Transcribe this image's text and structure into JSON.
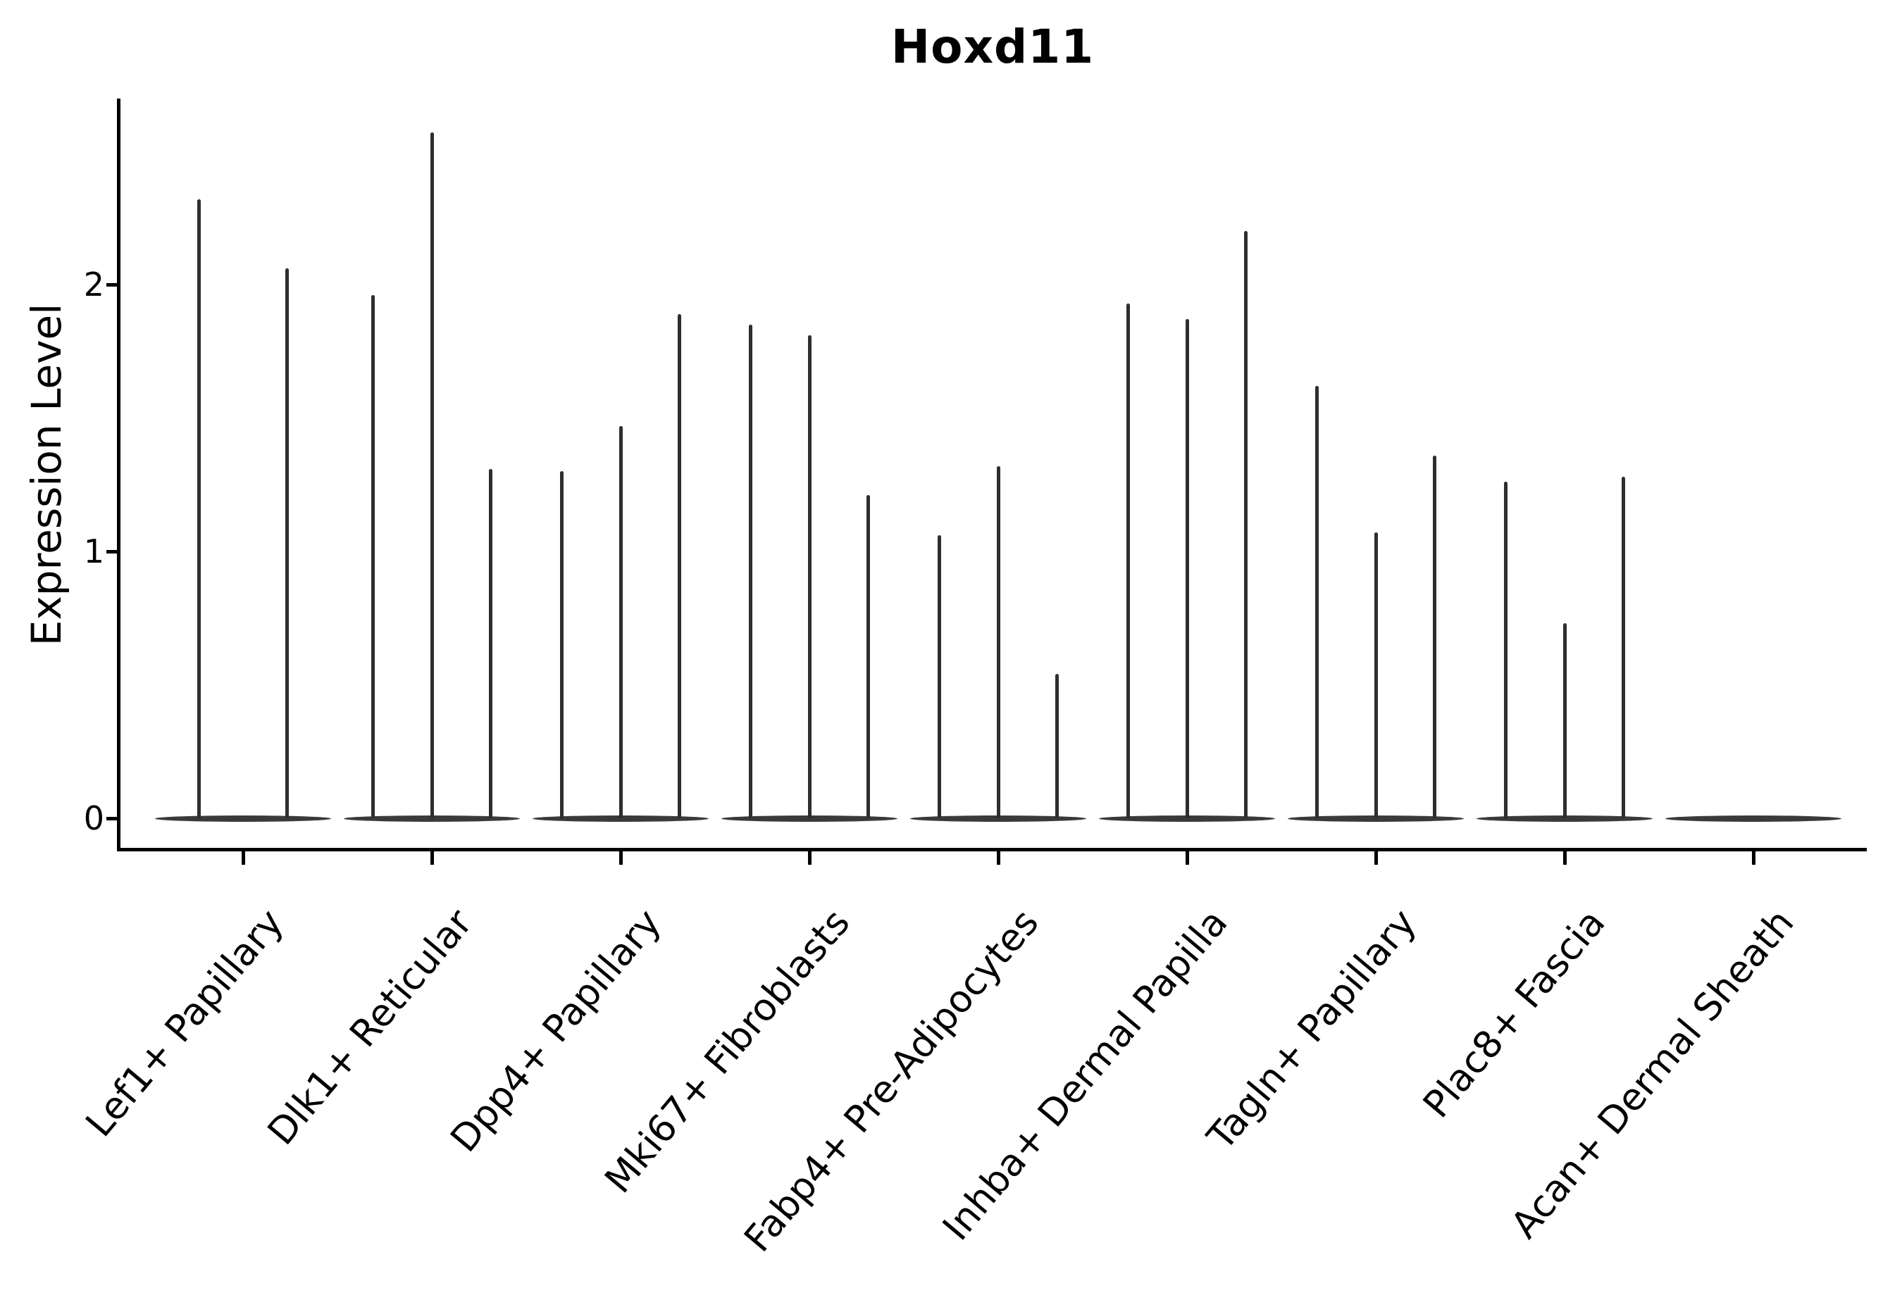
{
  "chart_data": {
    "type": "violin",
    "title": "Hoxd11",
    "xlabel": "",
    "ylabel": "Expression Level",
    "yticks": [
      0,
      1,
      2
    ],
    "ylim": [
      -0.13,
      2.7
    ],
    "grid": false,
    "legend": false,
    "style_note": "Single-cell expression violin plot; each category shows very thin spike-like violins (sparse data) rising from a wide flat base at 0. Spike values are the top of each sub-violin in Expression Level units.",
    "categories": [
      "Lef1+ Papillary",
      "Dlk1+ Reticular",
      "Dpp4+ Papillary",
      "Mki67+ Fibroblasts",
      "Fabp4+ Pre-Adipocytes",
      "Inhba+ Dermal Papilla",
      "Tagln+ Papillary",
      "Plac8+ Fascia",
      "Acan+ Dermal Sheath"
    ],
    "series": [
      {
        "category": "Lef1+ Papillary",
        "spike_maxima": [
          2.32,
          2.06
        ]
      },
      {
        "category": "Dlk1+ Reticular",
        "spike_maxima": [
          1.96,
          2.57,
          1.31
        ]
      },
      {
        "category": "Dpp4+ Papillary",
        "spike_maxima": [
          1.3,
          1.47,
          1.89
        ]
      },
      {
        "category": "Mki67+ Fibroblasts",
        "spike_maxima": [
          1.85,
          1.81,
          1.21
        ]
      },
      {
        "category": "Fabp4+ Pre-Adipocytes",
        "spike_maxima": [
          1.06,
          1.32,
          0.54
        ]
      },
      {
        "category": "Inhba+ Dermal Papilla",
        "spike_maxima": [
          1.93,
          1.87,
          2.2
        ]
      },
      {
        "category": "Tagln+ Papillary",
        "spike_maxima": [
          1.62,
          1.07,
          1.36
        ]
      },
      {
        "category": "Plac8+ Fascia",
        "spike_maxima": [
          1.26,
          0.73,
          1.28
        ]
      },
      {
        "category": "Acan+ Dermal Sheath",
        "spike_maxima": []
      }
    ],
    "colors": {
      "violin": "#2e2e2e",
      "violin_base": "#3a3a3a",
      "axis": "#000000",
      "background": "#ffffff"
    }
  }
}
